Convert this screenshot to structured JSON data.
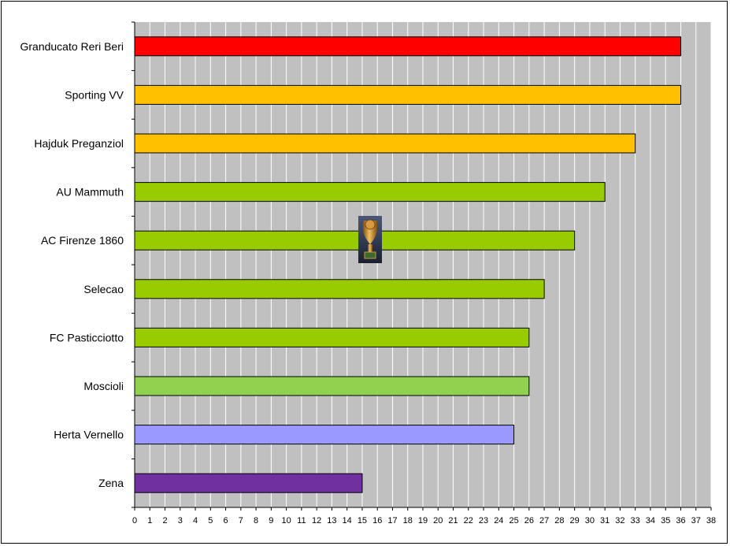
{
  "chart_data": {
    "type": "bar",
    "orientation": "horizontal",
    "categories": [
      "Granducato Reri Beri",
      "Sporting VV",
      "Hajduk Preganziol",
      "AU Mammuth",
      "AC Firenze 1860",
      "Selecao",
      "FC Pasticciotto",
      "Moscioli",
      "Herta Vernello",
      "Zena"
    ],
    "values": [
      36,
      36,
      33,
      31,
      29,
      27,
      26,
      26,
      25,
      15
    ],
    "bar_colors": [
      "#ff0000",
      "#ffc000",
      "#ffc000",
      "#99cc00",
      "#99cc00",
      "#99cc00",
      "#99cc00",
      "#92d050",
      "#9999ff",
      "#7030a0"
    ],
    "title": "",
    "xlabel": "",
    "ylabel": "",
    "xlim": [
      0,
      38
    ],
    "x_ticks": [
      "0",
      "1",
      "2",
      "3",
      "4",
      "5",
      "6",
      "7",
      "8",
      "9",
      "10",
      "11",
      "12",
      "13",
      "14",
      "15",
      "16",
      "17",
      "18",
      "19",
      "20",
      "21",
      "22",
      "23",
      "24",
      "25",
      "26",
      "27",
      "28",
      "29",
      "30",
      "31",
      "32",
      "33",
      "34",
      "35",
      "36",
      "37",
      "38"
    ],
    "grid": "vertical",
    "plot_background": "#c0c0c0",
    "gridline_color": "#ffffff",
    "legend": "none",
    "decoration": "trophy-icon"
  }
}
